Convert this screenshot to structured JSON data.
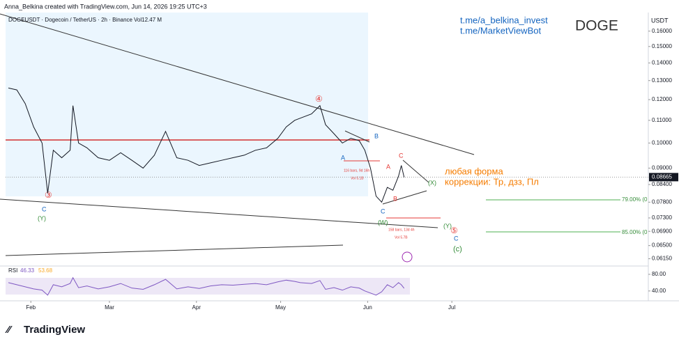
{
  "header": {
    "credit": "Anna_Belkina created with TradingView.com, Jun 14, 2026 19:25 UTC+3",
    "symbol": "DOGEUSDT · Dogecoin / TetherUS · 2h · Binance",
    "volume": "Vol12.47 M",
    "currency": "USDT",
    "links": [
      "t.me/a_belkina_invest",
      "t.me/MarketViewBot"
    ],
    "ticker": "DOGE",
    "note": [
      "любая форма",
      "коррекции: Тр, дзз, Пл"
    ],
    "logo": "TradingView"
  },
  "chart_data": [
    {
      "type": "line",
      "log_scale": true,
      "x": [
        -8,
        -5,
        -2,
        1,
        4,
        6,
        8,
        11,
        14,
        15,
        17,
        20,
        24,
        28,
        32,
        36,
        40,
        44,
        48,
        52,
        56,
        60,
        64,
        68,
        72,
        76,
        80,
        84,
        88,
        91,
        94,
        96,
        100,
        103,
        105,
        108,
        111,
        114,
        117,
        119,
        121,
        123,
        125,
        127,
        129,
        131,
        132,
        133
      ],
      "series": [
        {
          "name": "DOGEUSDT",
          "color": "#131722",
          "values": [
            0.126,
            0.125,
            0.118,
            0.107,
            0.1,
            0.081,
            0.097,
            0.094,
            0.097,
            0.117,
            0.1,
            0.098,
            0.094,
            0.093,
            0.096,
            0.093,
            0.09,
            0.095,
            0.105,
            0.094,
            0.093,
            0.091,
            0.092,
            0.093,
            0.094,
            0.095,
            0.097,
            0.098,
            0.102,
            0.107,
            0.11,
            0.111,
            0.113,
            0.117,
            0.108,
            0.104,
            0.1,
            0.102,
            0.101,
            0.097,
            0.09,
            0.08,
            0.078,
            0.083,
            0.082,
            0.087,
            0.091,
            0.0866
          ]
        }
      ],
      "xlim": [
        -9,
        220
      ],
      "xticks": [
        {
          "value": 0,
          "label": "Feb"
        },
        {
          "value": 28,
          "label": "Mar"
        },
        {
          "value": 59,
          "label": "Apr"
        },
        {
          "value": 89,
          "label": "May"
        },
        {
          "value": 120,
          "label": "Jun"
        },
        {
          "value": 150,
          "label": "Jul"
        }
      ],
      "ylim": [
        0.06,
        0.172
      ],
      "yticks": [
        {
          "value": 0.16,
          "label": "0.16000"
        },
        {
          "value": 0.15,
          "label": "0.15000"
        },
        {
          "value": 0.14,
          "label": "0.14000"
        },
        {
          "value": 0.13,
          "label": "0.13000"
        },
        {
          "value": 0.12,
          "label": "0.12000"
        },
        {
          "value": 0.11,
          "label": "0.11000"
        },
        {
          "value": 0.1,
          "label": "0.10000"
        },
        {
          "value": 0.09,
          "label": "0.09000"
        },
        {
          "value": 0.084,
          "label": "0.08400"
        },
        {
          "value": 0.078,
          "label": "0.07800"
        },
        {
          "value": 0.073,
          "label": "0.07300"
        },
        {
          "value": 0.069,
          "label": "0.06900"
        },
        {
          "value": 0.065,
          "label": "0.06500"
        },
        {
          "value": 0.0615,
          "label": "0.06150"
        }
      ],
      "last_price": {
        "value": 0.08665,
        "label": "0.08665"
      },
      "annotations": [
        "④",
        "③",
        "⑤",
        "C",
        "(Y)",
        "A",
        "B",
        "C",
        "(W)",
        "A",
        "C",
        "B",
        "(X)",
        "(Y)",
        "C",
        "(c)",
        "116 bars, 9d 16h",
        "Vol 5.1B",
        "158 bars, 13d 4h",
        "Vol 5.7B",
        "79.00% (0",
        "85.00% (0"
      ]
    },
    {
      "type": "line",
      "title": "RSI",
      "x": [
        -8,
        -5,
        -2,
        1,
        4,
        6,
        8,
        11,
        14,
        15,
        17,
        20,
        24,
        28,
        32,
        36,
        40,
        44,
        48,
        52,
        56,
        60,
        64,
        68,
        72,
        76,
        80,
        84,
        88,
        91,
        94,
        96,
        100,
        103,
        105,
        108,
        111,
        114,
        117,
        119,
        121,
        123,
        125,
        127,
        129,
        131,
        132,
        133
      ],
      "series": [
        {
          "name": "RSI",
          "color": "#7e57c2",
          "values": [
            60,
            55,
            50,
            45,
            42,
            30,
            55,
            50,
            58,
            72,
            48,
            52,
            45,
            50,
            58,
            47,
            44,
            55,
            68,
            45,
            50,
            46,
            52,
            55,
            54,
            56,
            58,
            55,
            62,
            66,
            63,
            60,
            58,
            65,
            44,
            48,
            42,
            50,
            47,
            40,
            35,
            30,
            38,
            55,
            48,
            60,
            55,
            46.33
          ]
        }
      ],
      "rsi_value": 46.33,
      "ma_value": 53.68,
      "xlim": [
        -9,
        220
      ],
      "ylim": [
        23,
        95
      ],
      "yticks": [
        {
          "value": 80,
          "label": "80.00"
        },
        {
          "value": 40,
          "label": "40.00"
        }
      ]
    }
  ]
}
